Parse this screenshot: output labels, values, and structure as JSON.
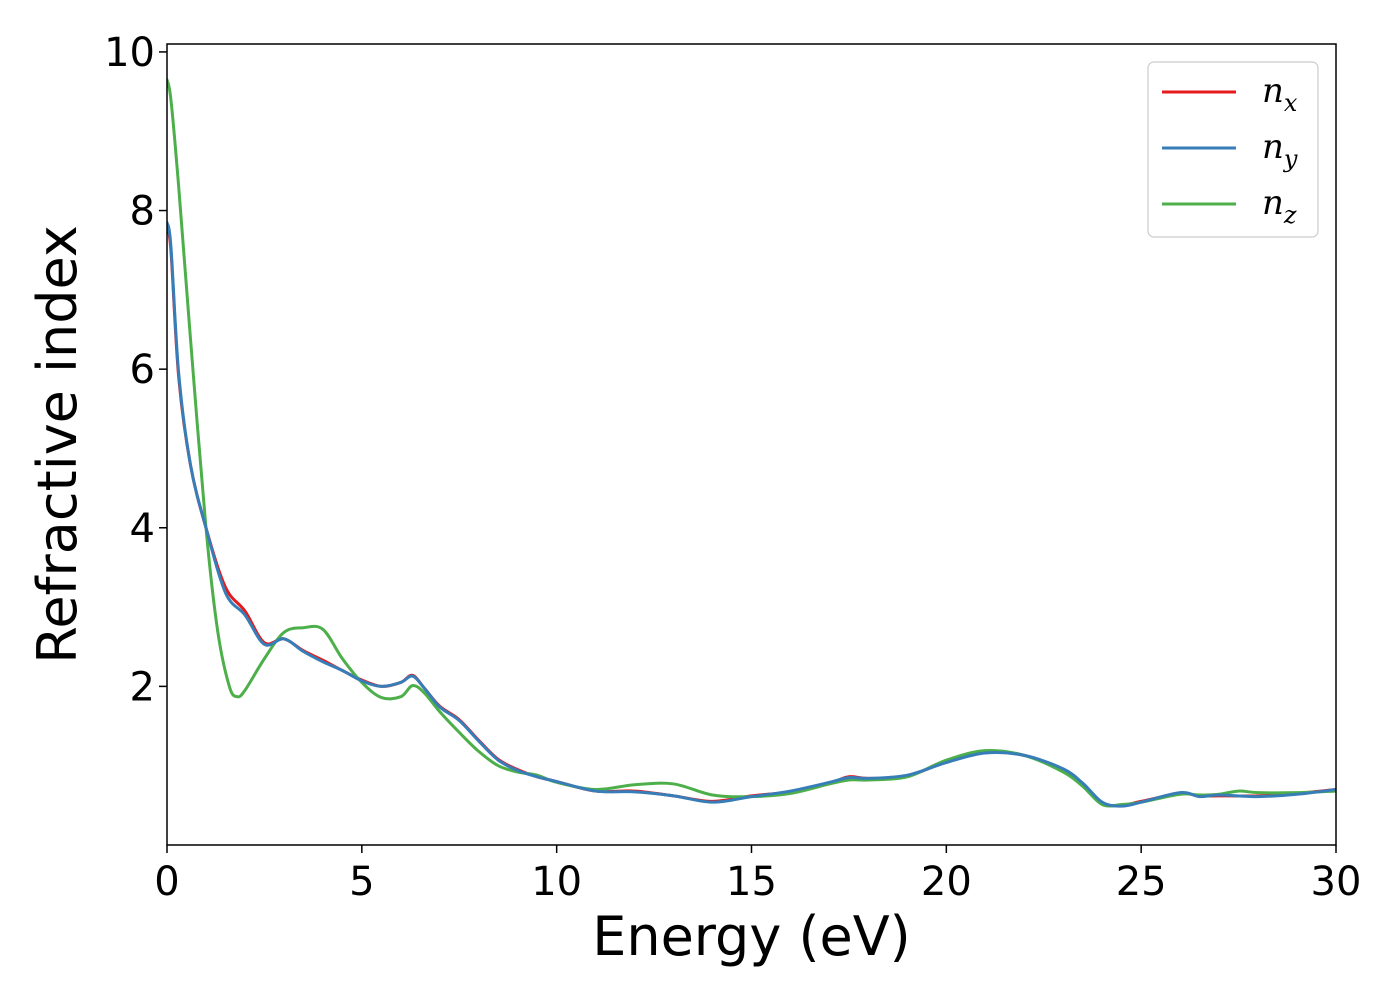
{
  "chart_data": {
    "type": "line",
    "title": "",
    "xlabel": "Energy (eV)",
    "ylabel": "Refractive index",
    "xlim": [
      0,
      30
    ],
    "ylim": [
      0,
      10.1
    ],
    "xticks": [
      0,
      5,
      10,
      15,
      20,
      25,
      30
    ],
    "yticks": [
      2,
      4,
      6,
      8,
      10
    ],
    "grid": false,
    "legend_position": "top-right",
    "series": [
      {
        "name": "n_x",
        "legend_base": "n",
        "legend_sub": "x",
        "color": "#e41a1c",
        "x": [
          0,
          0.1,
          0.3,
          0.6,
          1.0,
          1.5,
          2.0,
          2.5,
          3.0,
          3.5,
          4.0,
          4.5,
          5.0,
          5.5,
          6.0,
          6.3,
          6.6,
          7.0,
          7.5,
          8.0,
          8.5,
          9.0,
          9.5,
          10.0,
          11.0,
          12.0,
          13.0,
          14.0,
          15.0,
          16.0,
          17.0,
          17.5,
          18.0,
          19.0,
          20.0,
          21.0,
          22.0,
          23.0,
          23.5,
          24.0,
          24.5,
          25.0,
          26.0,
          26.5,
          27.0,
          28.0,
          29.0,
          30.0
        ],
        "y": [
          7.8,
          7.5,
          5.9,
          4.8,
          4.0,
          3.25,
          2.95,
          2.55,
          2.6,
          2.45,
          2.33,
          2.2,
          2.08,
          2.0,
          2.05,
          2.14,
          1.98,
          1.75,
          1.58,
          1.32,
          1.08,
          0.95,
          0.86,
          0.8,
          0.68,
          0.68,
          0.62,
          0.55,
          0.62,
          0.67,
          0.78,
          0.86,
          0.84,
          0.87,
          1.05,
          1.17,
          1.13,
          0.94,
          0.76,
          0.53,
          0.5,
          0.55,
          0.65,
          0.62,
          0.62,
          0.62,
          0.65,
          0.7
        ]
      },
      {
        "name": "n_y",
        "legend_base": "n",
        "legend_sub": "y",
        "color": "#377eb8",
        "x": [
          0,
          0.1,
          0.3,
          0.6,
          1.0,
          1.5,
          2.0,
          2.5,
          3.0,
          3.5,
          4.0,
          4.5,
          5.0,
          5.5,
          6.0,
          6.3,
          6.6,
          7.0,
          7.5,
          8.0,
          8.5,
          9.0,
          9.5,
          10.0,
          11.0,
          12.0,
          13.0,
          14.0,
          15.0,
          16.0,
          17.0,
          17.5,
          18.0,
          19.0,
          20.0,
          21.0,
          22.0,
          23.0,
          23.5,
          24.0,
          24.5,
          25.0,
          26.0,
          26.5,
          27.0,
          28.0,
          29.0,
          30.0
        ],
        "y": [
          7.85,
          7.55,
          5.95,
          4.8,
          4.0,
          3.18,
          2.9,
          2.53,
          2.6,
          2.44,
          2.31,
          2.2,
          2.07,
          2.0,
          2.05,
          2.13,
          1.98,
          1.74,
          1.57,
          1.31,
          1.07,
          0.94,
          0.86,
          0.8,
          0.68,
          0.67,
          0.62,
          0.54,
          0.61,
          0.68,
          0.79,
          0.85,
          0.84,
          0.88,
          1.04,
          1.16,
          1.13,
          0.96,
          0.78,
          0.54,
          0.49,
          0.54,
          0.66,
          0.61,
          0.63,
          0.61,
          0.64,
          0.7
        ]
      },
      {
        "name": "n_z",
        "legend_base": "n",
        "legend_sub": "z",
        "color": "#4daf4a",
        "x": [
          0,
          0.1,
          0.3,
          0.6,
          1.0,
          1.3,
          1.6,
          1.8,
          2.0,
          2.5,
          3.0,
          3.5,
          4.0,
          4.5,
          5.0,
          5.5,
          6.0,
          6.3,
          6.6,
          7.0,
          7.5,
          8.0,
          8.5,
          9.0,
          9.5,
          10.0,
          11.0,
          12.0,
          13.0,
          14.0,
          15.0,
          16.0,
          17.0,
          17.5,
          18.0,
          19.0,
          20.0,
          21.0,
          22.0,
          23.0,
          23.5,
          24.0,
          24.5,
          25.0,
          26.0,
          26.5,
          27.0,
          27.5,
          28.0,
          29.0,
          30.0
        ],
        "y": [
          9.65,
          9.4,
          8.3,
          6.4,
          4.0,
          2.7,
          2.0,
          1.87,
          1.95,
          2.35,
          2.68,
          2.74,
          2.72,
          2.35,
          2.05,
          1.86,
          1.87,
          2.01,
          1.92,
          1.68,
          1.42,
          1.18,
          1.0,
          0.92,
          0.88,
          0.79,
          0.7,
          0.76,
          0.77,
          0.63,
          0.61,
          0.65,
          0.77,
          0.82,
          0.82,
          0.86,
          1.07,
          1.19,
          1.13,
          0.92,
          0.74,
          0.51,
          0.51,
          0.54,
          0.64,
          0.63,
          0.64,
          0.68,
          0.66,
          0.66,
          0.68
        ]
      }
    ]
  }
}
